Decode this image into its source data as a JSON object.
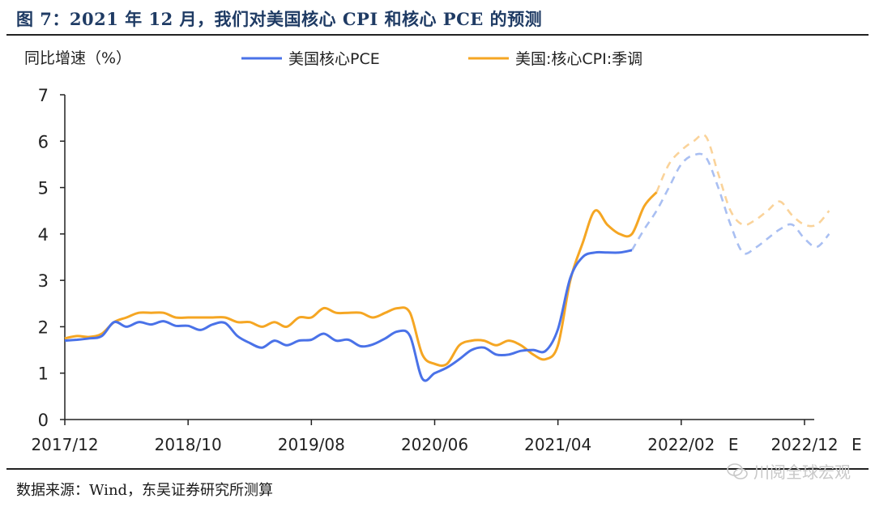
{
  "header": {
    "title": "图 7：2021 年 12 月，我们对美国核心 CPI 和核心 PCE 的预测"
  },
  "footer": {
    "source": "数据来源：Wind，东吴证券研究所测算",
    "watermark": "川阅全球宏观"
  },
  "chart_data": {
    "type": "line",
    "ylabel": "同比增速（%）",
    "ylim": [
      0,
      7
    ],
    "yticks": [
      0,
      1,
      2,
      3,
      4,
      5,
      6,
      7
    ],
    "xticks": [
      "2017/12",
      "2018/10",
      "2019/08",
      "2020/06",
      "2021/04",
      "2022/02",
      "2022/12"
    ],
    "x_tick_suffix": "E",
    "legend_position": "top",
    "grid": false,
    "x_start": "2017/12",
    "forecast_start": "2021/10",
    "series": [
      {
        "name": "美国核心PCE",
        "color": "#4a72e8",
        "values": [
          1.7,
          1.72,
          1.75,
          1.8,
          2.1,
          2.0,
          2.1,
          2.05,
          2.12,
          2.02,
          2.02,
          1.93,
          2.05,
          2.08,
          1.8,
          1.65,
          1.55,
          1.7,
          1.6,
          1.7,
          1.72,
          1.85,
          1.7,
          1.72,
          1.58,
          1.62,
          1.75,
          1.9,
          1.8,
          0.88,
          1.0,
          1.12,
          1.3,
          1.5,
          1.55,
          1.4,
          1.4,
          1.48,
          1.5,
          1.48,
          1.95,
          3.05,
          3.5,
          3.6,
          3.6,
          3.6,
          3.65,
          4.1,
          4.5,
          5.0,
          5.5,
          5.7,
          5.65,
          5.0,
          4.2,
          3.6,
          3.7,
          3.9,
          4.1,
          4.2,
          3.9,
          3.72,
          4.0
        ],
        "forecast_from_index": 46
      },
      {
        "name": "美国:核心CPI:季调",
        "color": "#f5a623",
        "values": [
          1.75,
          1.8,
          1.78,
          1.85,
          2.1,
          2.2,
          2.3,
          2.3,
          2.3,
          2.2,
          2.2,
          2.2,
          2.2,
          2.2,
          2.1,
          2.1,
          2.0,
          2.1,
          2.0,
          2.2,
          2.2,
          2.4,
          2.3,
          2.3,
          2.3,
          2.2,
          2.3,
          2.4,
          2.3,
          1.4,
          1.2,
          1.2,
          1.6,
          1.7,
          1.7,
          1.6,
          1.7,
          1.6,
          1.4,
          1.3,
          1.6,
          3.0,
          3.8,
          4.5,
          4.2,
          4.0,
          4.0,
          4.6,
          4.9,
          5.5,
          5.8,
          6.0,
          6.1,
          5.3,
          4.5,
          4.2,
          4.3,
          4.5,
          4.7,
          4.4,
          4.2,
          4.2,
          4.5
        ],
        "forecast_from_index": 48
      }
    ]
  }
}
